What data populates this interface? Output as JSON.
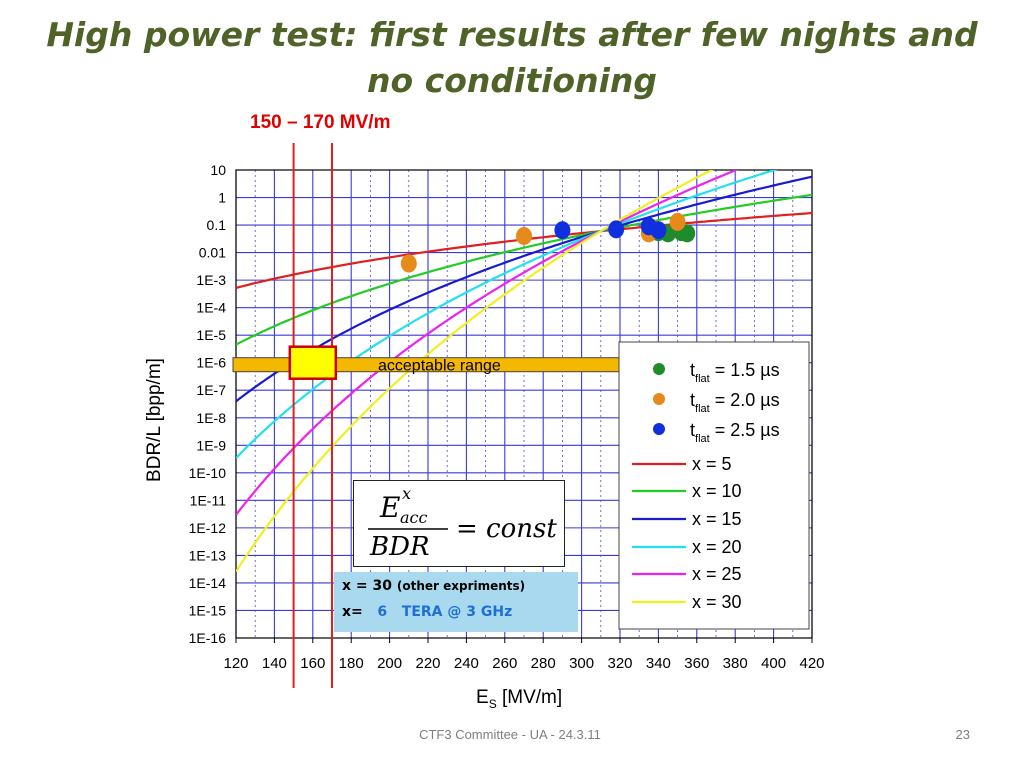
{
  "slide": {
    "title_line1": "High power test: first results after few nights and",
    "title_line2": "no conditioning",
    "range_label": "150 – 170 MV/m",
    "footer_text": "CTF3 Committee - UA - 24.3.11",
    "page_number": "23"
  },
  "chart_data": {
    "type": "scatter",
    "title": "",
    "xlabel_main": "E",
    "xlabel_sub": "S",
    "xlabel_rest": " [MV/m]",
    "ylabel": "BDR/L [bpp/m]",
    "xlim": [
      120,
      420
    ],
    "ylim_log10": [
      -16,
      1
    ],
    "y_scale": "log",
    "grid": true,
    "x_ticks": [
      "120",
      "140",
      "160",
      "180",
      "200",
      "220",
      "240",
      "260",
      "280",
      "300",
      "320",
      "340",
      "360",
      "380",
      "400",
      "420"
    ],
    "y_ticks": [
      "10",
      "1",
      "0.1",
      "0.01",
      "1E-3",
      "1E-4",
      "1E-5",
      "1E-6",
      "1E-7",
      "1E-8",
      "1E-9",
      "1E-10",
      "1E-11",
      "1E-12",
      "1E-13",
      "1E-14",
      "1E-15",
      "1E-16"
    ],
    "highlight_lines_x": [
      150,
      170
    ],
    "acceptable_band": {
      "label": "acceptable   range",
      "bdr": 1e-06
    },
    "scatter_series": [
      {
        "name": "1.5 µs",
        "legend_label": "= 1.5 µs",
        "color": "#1e8c2a",
        "points": [
          [
            340,
            0.055
          ],
          [
            345,
            0.05
          ],
          [
            352,
            0.055
          ],
          [
            355,
            0.05
          ]
        ]
      },
      {
        "name": "2.0 µs",
        "legend_label": "= 2.0 µs",
        "color": "#e68a1c",
        "points": [
          [
            210,
            0.004
          ],
          [
            270,
            0.04
          ],
          [
            335,
            0.05
          ],
          [
            338,
            0.07
          ],
          [
            350,
            0.13
          ]
        ]
      },
      {
        "name": "2.5 µs",
        "legend_label": "= 2.5 µs",
        "color": "#1030e0",
        "points": [
          [
            290,
            0.065
          ],
          [
            318,
            0.07
          ],
          [
            335,
            0.09
          ],
          [
            340,
            0.065
          ]
        ]
      }
    ],
    "curve_series": [
      {
        "name": "x = 5",
        "x_exp": 5,
        "color": "#e02020"
      },
      {
        "name": "x = 10",
        "x_exp": 10,
        "color": "#22cc22"
      },
      {
        "name": "x = 15",
        "x_exp": 15,
        "color": "#1a1ad0"
      },
      {
        "name": "x = 20",
        "x_exp": 20,
        "color": "#22e0f0"
      },
      {
        "name": "x = 25",
        "x_exp": 25,
        "color": "#ee22ee"
      },
      {
        "name": "x = 30",
        "x_exp": 30,
        "color": "#f0f020"
      }
    ],
    "curve_anchor": {
      "es": 310,
      "bdr": 0.06
    },
    "legend_t_label": "t",
    "legend_t_sub": "flat",
    "legend_position": "right"
  },
  "formula": {
    "numerator_base": "E",
    "numerator_sup": "x",
    "numerator_sub": "acc",
    "denominator": "BDR",
    "rhs": "= const"
  },
  "note": {
    "line1_main": "x = 30",
    "line1_small": "(other expriments)",
    "line2_prefix": "x=",
    "line2_value": "6",
    "line2_text": "TERA @ 3 GHz"
  }
}
